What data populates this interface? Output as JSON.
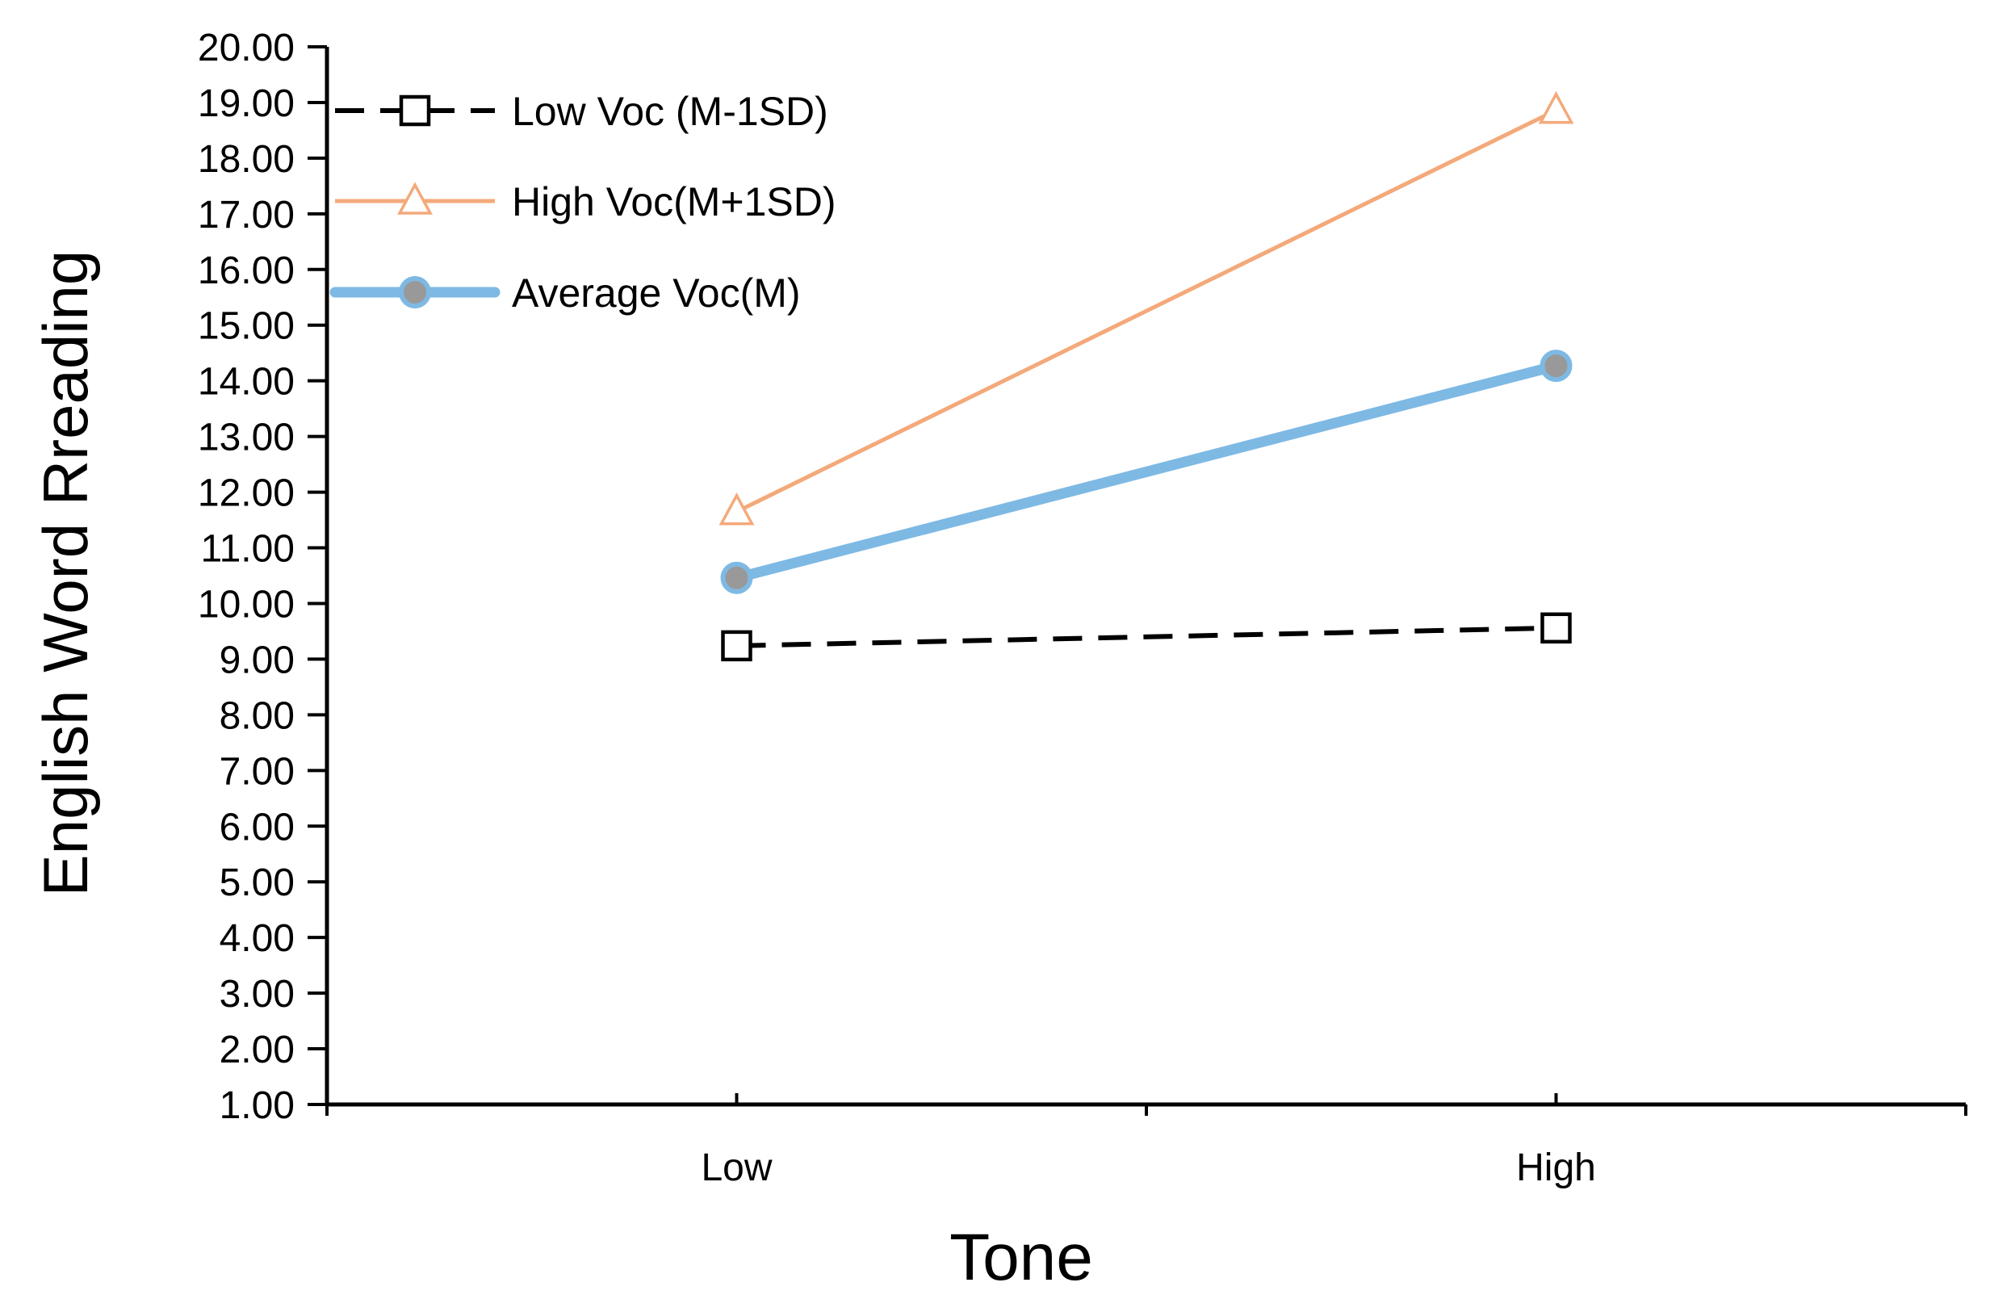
{
  "chart_data": {
    "type": "line",
    "title": "",
    "xlabel": "Tone",
    "ylabel": "English Word Rreading",
    "categories": [
      "Low",
      "High"
    ],
    "ylim": [
      1,
      20
    ],
    "ytick_step": 1,
    "ytick_labels": [
      "1.00",
      "2.00",
      "3.00",
      "4.00",
      "5.00",
      "6.00",
      "7.00",
      "8.00",
      "9.00",
      "10.00",
      "11.00",
      "12.00",
      "13.00",
      "14.00",
      "15.00",
      "16.00",
      "17.00",
      "18.00",
      "19.00",
      "20.00"
    ],
    "grid": false,
    "legend_position": "top-left",
    "series": [
      {
        "name": "Low Voc (M-1SD)",
        "values": [
          9.24,
          9.56
        ],
        "color": "#000000",
        "marker": "square-open",
        "line_style": "dashed"
      },
      {
        "name": "High Voc(M+1SD)",
        "values": [
          11.65,
          18.86
        ],
        "color": "#F4A97A",
        "marker": "triangle-open",
        "line_style": "solid"
      },
      {
        "name": "Average Voc(M)",
        "values": [
          10.46,
          14.27
        ],
        "color": "#7EB9E4",
        "marker_color": "#999999",
        "marker": "circle-filled",
        "line_style": "solid-thick"
      }
    ]
  }
}
